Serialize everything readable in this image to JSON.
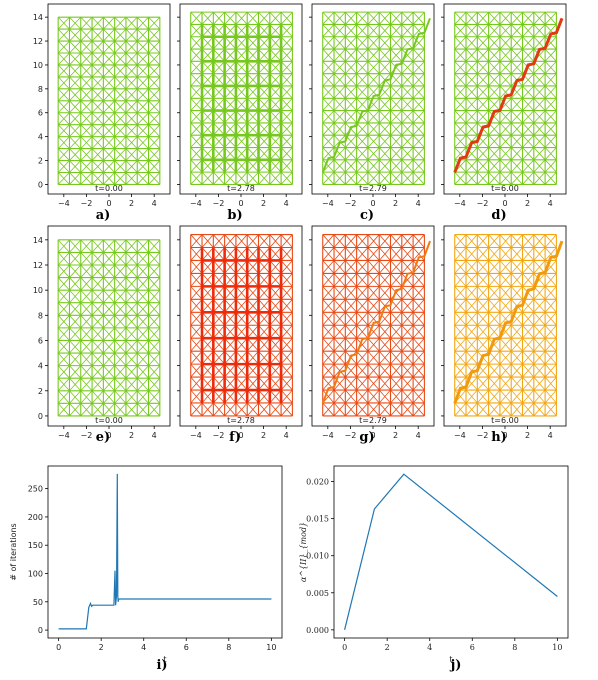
{
  "figure": {
    "meshes": [
      {
        "label": "a)",
        "time_label": "t=0.00",
        "mesh_color": "#77c81e",
        "crack_color": null,
        "crack": "none",
        "deformed": false
      },
      {
        "label": "b)",
        "time_label": "t=2.78",
        "mesh_color": "#77c81e",
        "crack_color": null,
        "crack": "distributed",
        "deformed": true
      },
      {
        "label": "c)",
        "time_label": "t=2.79",
        "mesh_color": "#77c81e",
        "crack_color": null,
        "crack": "diagonal-faint",
        "deformed": true
      },
      {
        "label": "d)",
        "time_label": "t=6.00",
        "mesh_color": "#77c81e",
        "crack_color": "#e03a12",
        "crack": "diagonal",
        "deformed": true
      },
      {
        "label": "e)",
        "time_label": "t=0.00",
        "mesh_color": "#77c81e",
        "crack_color": null,
        "crack": "none",
        "deformed": false
      },
      {
        "label": "f)",
        "time_label": "t=2.78",
        "mesh_color": "#e84a16",
        "crack_color": "#ee2a0a",
        "crack": "distributed",
        "deformed": true
      },
      {
        "label": "g)",
        "time_label": "t=2.79",
        "mesh_color": "#e84a16",
        "crack_color": "#f07a10",
        "crack": "diagonal-faint",
        "deformed": true
      },
      {
        "label": "h)",
        "time_label": "t=6.00",
        "mesh_color": "#f2a614",
        "crack_color": "#f09a10",
        "crack": "diagonal",
        "deformed": true
      }
    ],
    "mesh_axes": {
      "x_ticks": [
        "−4",
        "−2",
        "0",
        "2",
        "4"
      ],
      "y_ticks": [
        "0",
        "2",
        "4",
        "6",
        "8",
        "10",
        "12",
        "14"
      ]
    },
    "panel_i_label": "i)",
    "panel_j_label": "j)"
  },
  "chart_data": [
    {
      "type": "line",
      "panel": "i)",
      "xlabel": "t",
      "ylabel": "# of iterations",
      "xlim": [
        -0.5,
        10.5
      ],
      "ylim": [
        -14,
        290
      ],
      "xticks": [
        0,
        2,
        4,
        6,
        8,
        10
      ],
      "yticks": [
        0,
        50,
        100,
        150,
        200,
        250
      ],
      "grid": false,
      "color": "#1f77b4",
      "x": [
        0,
        1.3,
        1.42,
        1.5,
        1.55,
        1.6,
        2.6,
        2.65,
        2.68,
        2.72,
        2.76,
        2.78,
        2.8,
        2.82,
        2.85,
        3.0,
        10.0
      ],
      "y": [
        2,
        2,
        40,
        47,
        42,
        44,
        44,
        105,
        44,
        60,
        276,
        60,
        50,
        54,
        55,
        55,
        55
      ]
    },
    {
      "type": "line",
      "panel": "j)",
      "xlabel": "t",
      "ylabel": "α^{II}_{mod}",
      "xlim": [
        -0.5,
        10.5
      ],
      "ylim": [
        -0.0011,
        0.0221
      ],
      "xticks": [
        0,
        2,
        4,
        6,
        8,
        10
      ],
      "yticks": [
        0.0,
        0.005,
        0.01,
        0.015,
        0.02
      ],
      "ytick_labels": [
        "0.000",
        "0.005",
        "0.010",
        "0.015",
        "0.020"
      ],
      "grid": false,
      "color": "#1f77b4",
      "x": [
        0,
        1.4,
        2.78,
        10.0
      ],
      "y": [
        0.0,
        0.0163,
        0.021,
        0.0045
      ]
    }
  ]
}
